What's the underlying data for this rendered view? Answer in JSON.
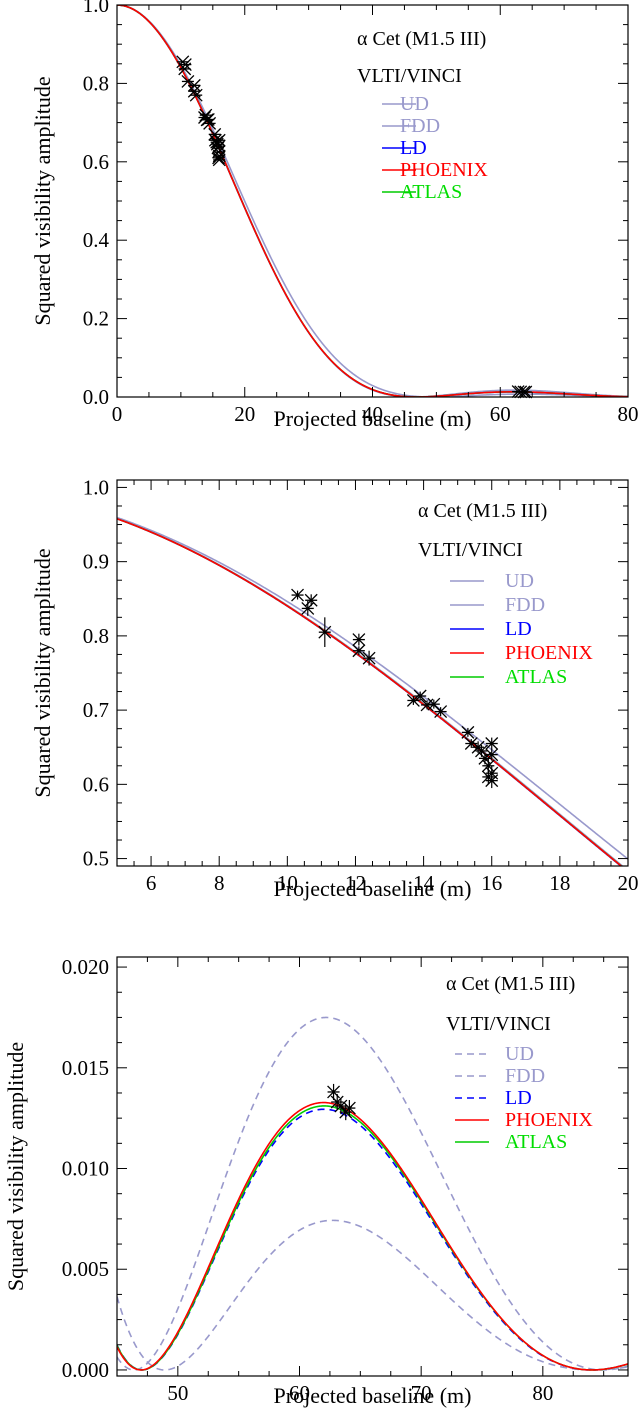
{
  "figure_title": "",
  "chart_data": [
    {
      "type": "line",
      "title": "",
      "xlabel": "Projected baseline (m)",
      "ylabel": "Squared visibility amplitude",
      "xlim": [
        0,
        80
      ],
      "ylim": [
        0,
        1.0
      ],
      "x_ticks": [
        "0",
        "20",
        "40",
        "60",
        "80"
      ],
      "y_ticks": [
        "0.0",
        "0.2",
        "0.4",
        "0.6",
        "0.8",
        "1.0"
      ],
      "annotations": [
        "α Cet (M1.5 III)",
        "VLTI/VINCI"
      ],
      "legend_position": "top-right",
      "series": [
        {
          "name": "UD",
          "color": "#9999cc",
          "dash": false,
          "label_color": "#9999cc"
        },
        {
          "name": "FDD",
          "color": "#9999cc",
          "dash": false,
          "label_color": "#9999cc"
        },
        {
          "name": "LD",
          "color": "#0000ff",
          "dash": false,
          "label_color": "#0000ff"
        },
        {
          "name": "PHOENIX",
          "color": "#ff0000",
          "dash": false,
          "label_color": "#ff0000"
        },
        {
          "name": "ATLAS",
          "color": "#00cc00",
          "dash": false,
          "label_color": "#00dd00"
        }
      ],
      "observations": [
        {
          "x": 10.3,
          "y": 0.855
        },
        {
          "x": 10.6,
          "y": 0.837
        },
        {
          "x": 10.7,
          "y": 0.848
        },
        {
          "x": 11.1,
          "y": 0.805
        },
        {
          "x": 12.1,
          "y": 0.795
        },
        {
          "x": 12.1,
          "y": 0.78
        },
        {
          "x": 12.4,
          "y": 0.77
        },
        {
          "x": 13.7,
          "y": 0.713
        },
        {
          "x": 13.9,
          "y": 0.719
        },
        {
          "x": 14.1,
          "y": 0.707
        },
        {
          "x": 14.3,
          "y": 0.708
        },
        {
          "x": 14.5,
          "y": 0.698
        },
        {
          "x": 15.3,
          "y": 0.67
        },
        {
          "x": 15.4,
          "y": 0.655
        },
        {
          "x": 15.6,
          "y": 0.65
        },
        {
          "x": 15.7,
          "y": 0.645
        },
        {
          "x": 15.8,
          "y": 0.635
        },
        {
          "x": 15.9,
          "y": 0.625
        },
        {
          "x": 16.0,
          "y": 0.655
        },
        {
          "x": 16.0,
          "y": 0.64
        },
        {
          "x": 16.0,
          "y": 0.615
        },
        {
          "x": 16.0,
          "y": 0.605
        },
        {
          "x": 15.9,
          "y": 0.61
        },
        {
          "x": 62.8,
          "y": 0.0138
        },
        {
          "x": 63.2,
          "y": 0.0132
        },
        {
          "x": 63.7,
          "y": 0.013
        },
        {
          "x": 64.0,
          "y": 0.0128
        }
      ]
    },
    {
      "type": "line",
      "title": "",
      "xlabel": "Projected baseline (m)",
      "ylabel": "Squared visibility amplitude",
      "xlim": [
        5,
        20
      ],
      "ylim": [
        0.49,
        1.01
      ],
      "x_ticks": [
        "6",
        "8",
        "10",
        "12",
        "14",
        "16",
        "18",
        "20"
      ],
      "y_ticks": [
        "0.5",
        "0.6",
        "0.7",
        "0.8",
        "0.9",
        "1.0"
      ],
      "annotations": [
        "α Cet (M1.5 III)",
        "VLTI/VINCI"
      ],
      "legend_position": "right",
      "series": [
        {
          "name": "UD",
          "color": "#9999cc",
          "dash": false,
          "label_color": "#9999cc"
        },
        {
          "name": "FDD",
          "color": "#9999cc",
          "dash": false,
          "label_color": "#9999cc"
        },
        {
          "name": "LD",
          "color": "#0000ff",
          "dash": false,
          "label_color": "#0000ff"
        },
        {
          "name": "PHOENIX",
          "color": "#ff0000",
          "dash": false,
          "label_color": "#ff0000"
        },
        {
          "name": "ATLAS",
          "color": "#00cc00",
          "dash": false,
          "label_color": "#00dd00"
        }
      ],
      "observations": [
        {
          "x": 10.3,
          "y": 0.855,
          "err": 0.006
        },
        {
          "x": 10.6,
          "y": 0.837,
          "err": 0.01
        },
        {
          "x": 10.7,
          "y": 0.848,
          "err": 0.008
        },
        {
          "x": 11.1,
          "y": 0.805,
          "err": 0.02
        },
        {
          "x": 12.1,
          "y": 0.795,
          "err": 0.008
        },
        {
          "x": 12.1,
          "y": 0.78,
          "err": 0.006
        },
        {
          "x": 12.4,
          "y": 0.77,
          "err": 0.01
        },
        {
          "x": 13.7,
          "y": 0.713,
          "err": 0.006
        },
        {
          "x": 13.9,
          "y": 0.719,
          "err": 0.006
        },
        {
          "x": 14.1,
          "y": 0.707,
          "err": 0.006
        },
        {
          "x": 14.3,
          "y": 0.708,
          "err": 0.006
        },
        {
          "x": 14.5,
          "y": 0.698,
          "err": 0.006
        },
        {
          "x": 15.3,
          "y": 0.67,
          "err": 0.006
        },
        {
          "x": 15.4,
          "y": 0.655,
          "err": 0.006
        },
        {
          "x": 15.6,
          "y": 0.65,
          "err": 0.008
        },
        {
          "x": 15.7,
          "y": 0.645,
          "err": 0.008
        },
        {
          "x": 15.8,
          "y": 0.635,
          "err": 0.008
        },
        {
          "x": 15.9,
          "y": 0.625,
          "err": 0.01
        },
        {
          "x": 16.0,
          "y": 0.655,
          "err": 0.008
        },
        {
          "x": 16.0,
          "y": 0.64,
          "err": 0.008
        },
        {
          "x": 16.0,
          "y": 0.615,
          "err": 0.01
        },
        {
          "x": 16.0,
          "y": 0.605,
          "err": 0.01
        },
        {
          "x": 15.9,
          "y": 0.61,
          "err": 0.01
        }
      ]
    },
    {
      "type": "line",
      "title": "",
      "xlabel": "Projected baseline (m)",
      "ylabel": "Squared visibility amplitude",
      "xlim": [
        45,
        87
      ],
      "ylim": [
        -0.0003,
        0.0205
      ],
      "x_ticks": [
        "50",
        "60",
        "70",
        "80"
      ],
      "y_ticks": [
        "0.000",
        "0.005",
        "0.010",
        "0.015",
        "0.020"
      ],
      "annotations": [
        "α Cet (M1.5 III)",
        "VLTI/VINCI"
      ],
      "legend_position": "right",
      "series": [
        {
          "name": "UD",
          "color": "#9999cc",
          "dash": true,
          "label_color": "#9999cc"
        },
        {
          "name": "FDD",
          "color": "#9999cc",
          "dash": true,
          "label_color": "#9999cc"
        },
        {
          "name": "LD",
          "color": "#0000ff",
          "dash": true,
          "label_color": "#0000ff"
        },
        {
          "name": "PHOENIX",
          "color": "#ff0000",
          "dash": false,
          "label_color": "#ff0000"
        },
        {
          "name": "ATLAS",
          "color": "#00cc00",
          "dash": false,
          "label_color": "#00dd00"
        }
      ],
      "observations": [
        {
          "x": 62.8,
          "y": 0.0138,
          "err": 0.0004
        },
        {
          "x": 63.1,
          "y": 0.0133,
          "err": 0.0004
        },
        {
          "x": 63.4,
          "y": 0.0131,
          "err": 0.0004
        },
        {
          "x": 63.8,
          "y": 0.0128,
          "err": 0.0004
        },
        {
          "x": 64.1,
          "y": 0.013,
          "err": 0.0004
        }
      ]
    }
  ]
}
